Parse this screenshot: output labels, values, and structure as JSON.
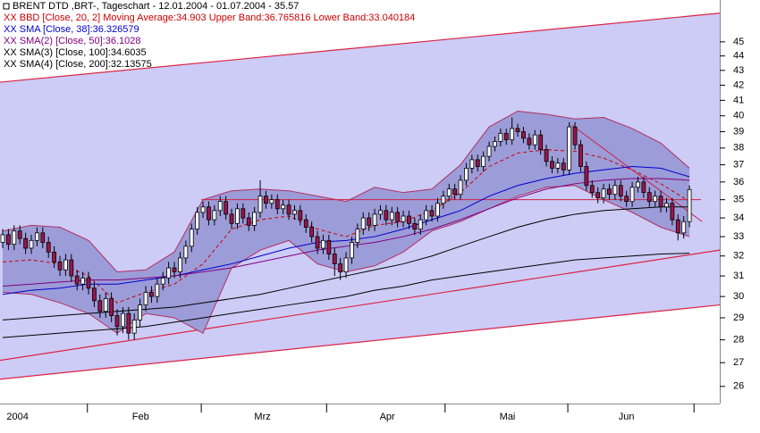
{
  "chart_data": {
    "type": "candlestick",
    "title": "BRENT DTD ,BRT-, Tageschart - 12.01.2004 - 01.07.2004 - 35.57",
    "log_scale": true,
    "xlim": [
      -0.47,
      125.3
    ],
    "ylim": [
      25.3,
      48.1
    ],
    "yticks": [
      26,
      27,
      28,
      29,
      30,
      31,
      32,
      33,
      34,
      35,
      36,
      37,
      38,
      39,
      40,
      41,
      42,
      43,
      44,
      45
    ],
    "xticks": [
      {
        "value": 2.6,
        "label": "2004"
      },
      {
        "value": 24.1,
        "label": "Feb"
      },
      {
        "value": 45.4,
        "label": "Mrz"
      },
      {
        "value": 67.2,
        "label": "Apr"
      },
      {
        "value": 88.2,
        "label": "Mai"
      },
      {
        "value": 109,
        "label": "Jun"
      }
    ],
    "month_starts": [
      14.8,
      34.7,
      56.6,
      77.3,
      98.75,
      120.8
    ],
    "up_color": "#ffffff",
    "down_color": "#99154a",
    "open": [
      32.7,
      33.1,
      32.6,
      33.3,
      32.9,
      32.4,
      32.8,
      33.2,
      32.7,
      32.2,
      31.7,
      31.3,
      31.8,
      31.0,
      30.6,
      30.9,
      30.4,
      29.8,
      29.3,
      29.9,
      29.1,
      28.6,
      29.2,
      28.3,
      28.9,
      29.6,
      30.2,
      30.0,
      30.6,
      30.9,
      31.4,
      31.2,
      31.9,
      32.5,
      33.4,
      34.3,
      34.6,
      33.9,
      34.4,
      34.9,
      34.2,
      33.7,
      34.5,
      34.0,
      33.6,
      34.3,
      35.2,
      34.8,
      35.0,
      34.5,
      34.7,
      34.2,
      34.4,
      33.9,
      33.5,
      33.0,
      32.4,
      32.8,
      32.1,
      31.6,
      31.2,
      31.9,
      32.7,
      33.4,
      34.0,
      33.6,
      34.2,
      34.4,
      33.9,
      34.3,
      33.8,
      34.1,
      33.7,
      33.4,
      33.9,
      34.4,
      34.1,
      34.8,
      35.2,
      35.6,
      35.3,
      36.1,
      36.8,
      37.3,
      36.9,
      37.5,
      38.1,
      38.4,
      38.9,
      38.5,
      39.2,
      39.0,
      38.6,
      38.2,
      38.8,
      37.9,
      37.2,
      36.8,
      37.1,
      36.7,
      39.3,
      38.2,
      36.9,
      35.8,
      35.4,
      35.1,
      35.6,
      35.3,
      35.8,
      35.2,
      34.9,
      35.7,
      36.0,
      35.4,
      34.9,
      35.2,
      34.6,
      34.8,
      33.9,
      33.2,
      33.8
    ],
    "high": [
      33.4,
      33.4,
      33.6,
      33.6,
      33.2,
      33.1,
      33.5,
      33.5,
      33.0,
      32.5,
      32.0,
      32.1,
      32.1,
      31.3,
      31.2,
      31.2,
      30.7,
      30.1,
      30.2,
      30.2,
      29.4,
      29.5,
      29.5,
      29.2,
      29.9,
      30.5,
      30.5,
      30.9,
      31.2,
      31.7,
      31.7,
      32.2,
      32.8,
      33.7,
      34.6,
      34.9,
      34.9,
      34.7,
      35.2,
      35.2,
      34.5,
      34.8,
      34.8,
      34.3,
      34.6,
      36.1,
      35.5,
      35.3,
      35.3,
      35.0,
      35.0,
      34.7,
      34.7,
      34.2,
      33.8,
      33.3,
      33.1,
      33.1,
      32.4,
      31.9,
      32.2,
      33.0,
      33.7,
      34.3,
      34.3,
      34.5,
      34.7,
      34.7,
      34.6,
      34.6,
      34.4,
      34.4,
      34.0,
      34.2,
      34.7,
      34.7,
      35.1,
      35.5,
      35.9,
      35.9,
      36.4,
      37.1,
      37.6,
      37.6,
      37.8,
      38.4,
      38.7,
      39.2,
      39.2,
      39.9,
      39.5,
      39.3,
      38.9,
      39.1,
      39.1,
      38.2,
      37.5,
      37.4,
      37.4,
      39.6,
      39.6,
      38.5,
      37.2,
      36.1,
      35.7,
      35.9,
      35.9,
      36.1,
      36.1,
      35.5,
      36.0,
      36.3,
      36.3,
      35.7,
      35.5,
      35.5,
      35.1,
      35.1,
      34.2,
      34.1,
      35.8
    ],
    "low": [
      32.4,
      32.3,
      32.3,
      32.6,
      32.1,
      32.1,
      32.5,
      32.4,
      31.9,
      31.4,
      31.0,
      31.0,
      30.7,
      30.3,
      30.3,
      30.1,
      29.5,
      29.0,
      29.0,
      28.8,
      28.2,
      28.3,
      28.0,
      28.0,
      28.6,
      29.3,
      29.7,
      29.7,
      30.3,
      30.6,
      30.9,
      30.9,
      31.6,
      32.2,
      33.1,
      34.0,
      33.6,
      33.6,
      34.1,
      33.9,
      33.4,
      33.4,
      33.7,
      33.3,
      33.3,
      34.0,
      34.5,
      34.5,
      34.2,
      34.2,
      33.9,
      33.9,
      33.6,
      33.2,
      32.7,
      32.1,
      32.1,
      31.8,
      31.0,
      30.8,
      30.9,
      31.6,
      32.4,
      33.1,
      33.3,
      33.3,
      33.9,
      33.6,
      33.6,
      33.5,
      33.5,
      33.4,
      33.1,
      33.1,
      33.6,
      33.8,
      33.8,
      34.5,
      34.9,
      35.0,
      35.0,
      35.8,
      36.5,
      36.6,
      36.6,
      37.2,
      37.8,
      38.1,
      38.2,
      38.2,
      38.7,
      38.3,
      37.9,
      37.9,
      37.6,
      36.9,
      36.5,
      36.5,
      36.4,
      36.4,
      37.9,
      36.6,
      35.5,
      35.1,
      34.8,
      34.8,
      35.0,
      35.0,
      34.9,
      34.6,
      34.6,
      35.4,
      35.1,
      34.6,
      34.6,
      34.3,
      34.3,
      33.6,
      32.8,
      32.9,
      33.5
    ],
    "close": [
      33.1,
      32.6,
      33.3,
      32.9,
      32.4,
      32.8,
      33.2,
      32.7,
      32.2,
      31.7,
      31.3,
      31.8,
      31.0,
      30.6,
      30.9,
      30.4,
      29.8,
      29.3,
      29.9,
      29.1,
      28.6,
      29.2,
      28.3,
      28.9,
      29.6,
      30.2,
      30.0,
      30.6,
      30.9,
      31.4,
      31.2,
      31.9,
      32.5,
      33.4,
      34.3,
      34.6,
      33.9,
      34.4,
      34.9,
      34.2,
      33.7,
      34.5,
      34.0,
      33.6,
      34.3,
      35.2,
      34.8,
      35.0,
      34.5,
      34.7,
      34.2,
      34.4,
      33.9,
      33.5,
      33.0,
      32.4,
      32.8,
      32.1,
      31.6,
      31.2,
      31.9,
      32.7,
      33.4,
      34.0,
      33.6,
      34.2,
      34.4,
      33.9,
      34.3,
      33.8,
      34.1,
      33.7,
      33.4,
      33.9,
      34.4,
      34.1,
      34.8,
      35.2,
      35.6,
      35.3,
      36.1,
      36.8,
      37.3,
      36.9,
      37.5,
      38.1,
      38.4,
      38.9,
      38.5,
      39.2,
      39.0,
      38.6,
      38.2,
      38.8,
      37.9,
      37.2,
      36.8,
      37.1,
      36.7,
      39.3,
      38.2,
      36.9,
      35.8,
      35.4,
      35.1,
      35.6,
      35.3,
      35.8,
      35.2,
      34.9,
      35.7,
      36.0,
      35.4,
      34.9,
      35.2,
      34.6,
      34.8,
      33.9,
      33.2,
      33.8,
      35.57
    ],
    "bands": {
      "name": "XX BBD [Close, 20, 2] Moving Average:34.903 Upper Band:36.765816 Lower Band:33.040184",
      "color": "#cc0000",
      "line_color": "#b03060",
      "fill": "#9c9cd8",
      "x": [
        0,
        5,
        10,
        15,
        20,
        25,
        30,
        35,
        40,
        45,
        50,
        55,
        60,
        65,
        70,
        75,
        80,
        85,
        90,
        95,
        100,
        105,
        110,
        115,
        120
      ],
      "upper": [
        33.3,
        33.6,
        33.5,
        32.8,
        31.2,
        31.3,
        32.2,
        35.0,
        35.5,
        35.6,
        35.5,
        35.2,
        34.9,
        35.7,
        35.4,
        35.6,
        37.0,
        39.3,
        40.3,
        40.1,
        39.8,
        39.9,
        39.2,
        38.3,
        36.8
      ],
      "middle": [
        31.7,
        31.8,
        31.6,
        31.0,
        29.7,
        30.2,
        30.6,
        31.6,
        33.4,
        33.9,
        34.1,
        33.4,
        33.0,
        33.6,
        33.8,
        34.4,
        35.4,
        36.9,
        37.7,
        37.9,
        37.8,
        37.4,
        36.7,
        35.9,
        34.9
      ],
      "lower": [
        30.2,
        30.1,
        29.7,
        29.2,
        28.3,
        29.2,
        29.0,
        28.3,
        31.4,
        32.3,
        32.8,
        31.6,
        31.2,
        31.5,
        32.2,
        33.3,
        33.8,
        34.5,
        35.2,
        35.7,
        35.8,
        35.0,
        34.3,
        33.5,
        33.0
      ]
    },
    "series": [
      {
        "name": "XX SMA [Close, 38]:36.326579",
        "color": "#0000cc",
        "x": [
          0,
          5,
          10,
          15,
          20,
          25,
          30,
          35,
          40,
          45,
          50,
          55,
          60,
          65,
          70,
          75,
          80,
          85,
          90,
          95,
          100,
          105,
          110,
          115,
          120
        ],
        "values": [
          30.1,
          30.3,
          30.4,
          30.6,
          30.6,
          30.8,
          31.0,
          31.3,
          31.6,
          32.0,
          32.4,
          32.7,
          32.8,
          33.0,
          33.4,
          33.9,
          34.4,
          35.2,
          35.8,
          36.2,
          36.5,
          36.7,
          36.9,
          36.8,
          36.3
        ]
      },
      {
        "name": "XX SMA(2) [Close, 50]:36.1028",
        "color": "#800080",
        "x": [
          0,
          5,
          10,
          15,
          20,
          25,
          30,
          35,
          40,
          45,
          50,
          55,
          60,
          65,
          70,
          75,
          80,
          85,
          90,
          95,
          100,
          105,
          110,
          115,
          120
        ],
        "values": [
          30.5,
          30.6,
          30.7,
          30.8,
          30.8,
          30.9,
          31.0,
          31.2,
          31.4,
          31.7,
          32.0,
          32.3,
          32.5,
          32.7,
          33.0,
          33.4,
          33.9,
          34.5,
          35.1,
          35.6,
          35.9,
          36.1,
          36.2,
          36.2,
          36.1
        ]
      },
      {
        "name": "XX SMA(3) [Close, 100]:34.6035",
        "color": "#000000",
        "x": [
          0,
          5,
          10,
          15,
          20,
          25,
          30,
          35,
          40,
          45,
          50,
          55,
          60,
          65,
          70,
          75,
          80,
          85,
          90,
          95,
          100,
          105,
          110,
          115,
          120
        ],
        "values": [
          28.9,
          29.0,
          29.1,
          29.2,
          29.3,
          29.4,
          29.5,
          29.7,
          29.9,
          30.1,
          30.4,
          30.7,
          31.0,
          31.3,
          31.6,
          32.0,
          32.5,
          33.0,
          33.5,
          33.9,
          34.2,
          34.4,
          34.5,
          34.6,
          34.6
        ]
      },
      {
        "name": "XX SMA(4) [Close, 200]:32.13575",
        "color": "#000000",
        "x": [
          0,
          5,
          10,
          15,
          20,
          25,
          30,
          35,
          40,
          45,
          50,
          55,
          60,
          65,
          70,
          75,
          80,
          85,
          90,
          95,
          100,
          105,
          110,
          115,
          120
        ],
        "values": [
          28.1,
          28.2,
          28.3,
          28.4,
          28.5,
          28.6,
          28.8,
          29.0,
          29.2,
          29.4,
          29.6,
          29.8,
          30.0,
          30.3,
          30.5,
          30.8,
          31.0,
          31.2,
          31.4,
          31.6,
          31.8,
          31.9,
          32.0,
          32.1,
          32.14
        ]
      }
    ],
    "channel": {
      "color": "#dd2244",
      "fill": "#ccccf6",
      "x": [
        -0.47,
        125.3
      ],
      "upper": [
        42.2,
        47.1
      ],
      "middle": [
        27.1,
        32.3
      ],
      "lower": [
        26.3,
        29.6
      ]
    },
    "trendlines": [
      {
        "color": "#cc2244",
        "x": [
          34.7,
          122
        ],
        "values": [
          35.0,
          35.0
        ]
      },
      {
        "color": "#cc2244",
        "x": [
          99.5,
          122.2
        ],
        "values": [
          39.4,
          33.8
        ]
      }
    ]
  }
}
